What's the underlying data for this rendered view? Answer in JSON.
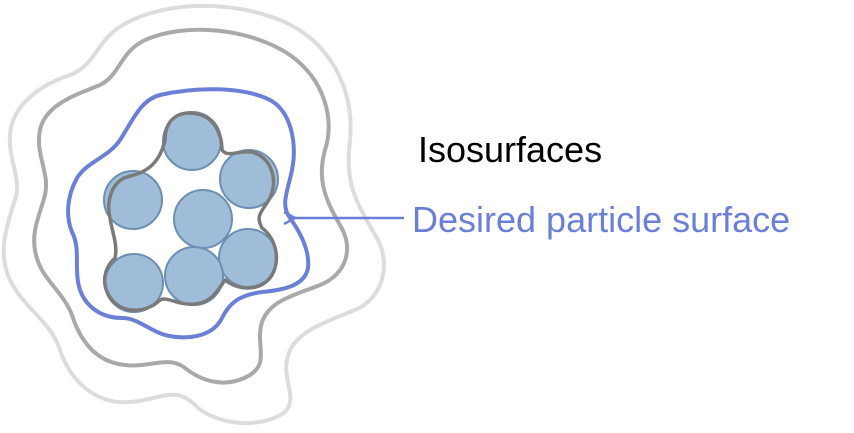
{
  "labels": {
    "isosurfaces": "Isosurfaces",
    "desired_surface": "Desired particle surface"
  },
  "colors": {
    "outer_contour": "#dcdcdc",
    "middle_contour": "#a9a9a9",
    "desired_contour": "#6b7fd6",
    "inner_contour": "#7a7a7a",
    "particle_fill": "#9fbcd9",
    "particle_stroke": "#6d8fb3",
    "desired_label": "#6b7fd6",
    "isosurfaces_label": "#000000"
  },
  "elements": {
    "particle_count": 7,
    "contour_count": 4
  }
}
